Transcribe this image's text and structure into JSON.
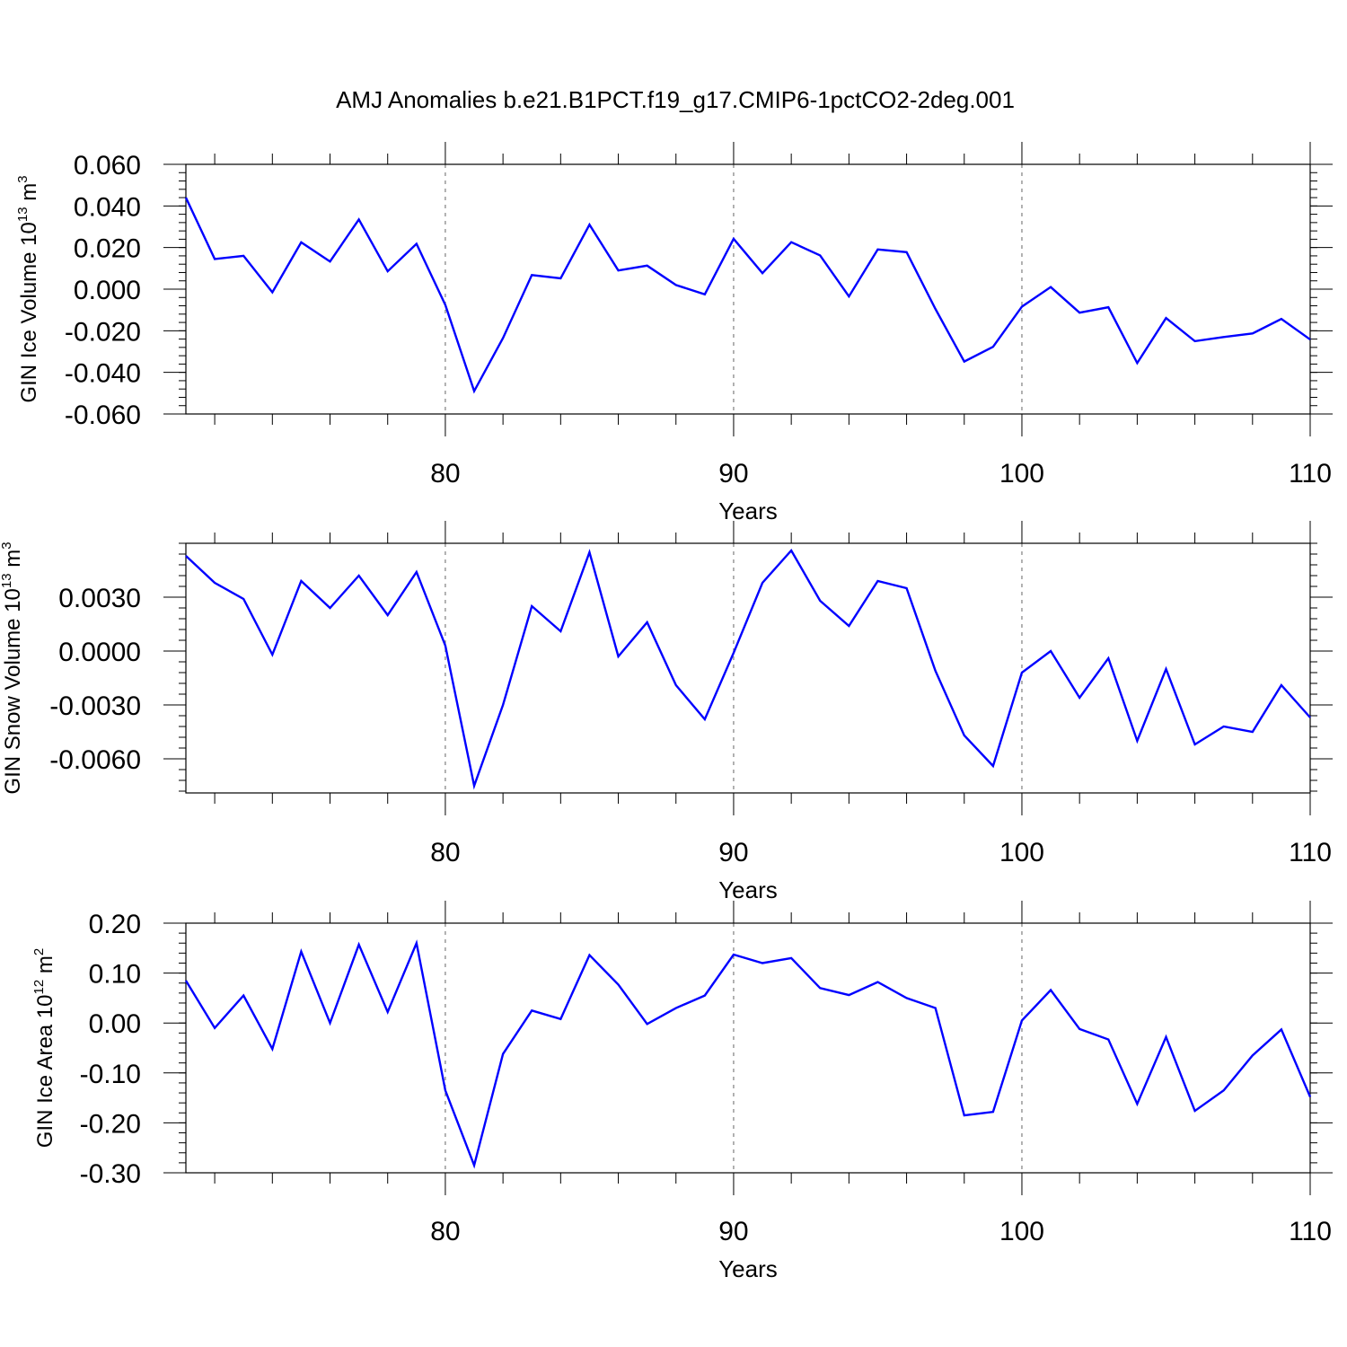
{
  "chart_data": [
    {
      "type": "line",
      "title": "AMJ Anomalies b.e21.B1PCT.f19_g17.CMIP6-1pctCO2-2deg.001",
      "xlabel": "Years",
      "ylabel": {
        "text": "GIN Ice Volume 10",
        "exp": "13",
        "unit": " m",
        "unit_exp": "3"
      },
      "xlim": [
        71,
        110
      ],
      "ylim": [
        -0.06,
        0.06
      ],
      "xticks": [
        80,
        90,
        100,
        110
      ],
      "yticks": [
        -0.06,
        -0.04,
        -0.02,
        0.0,
        0.02,
        0.04,
        0.06
      ],
      "ytick_labels": [
        "-0.060",
        "-0.040",
        "-0.020",
        "0.000",
        "0.020",
        "0.040",
        "0.060"
      ],
      "grid": "dashed vertical at major x ticks",
      "color": "#0000ff",
      "series": [
        {
          "x": [
            71,
            72,
            73,
            74,
            75,
            76,
            77,
            78,
            79,
            80,
            81,
            82,
            83,
            84,
            85,
            86,
            87,
            88,
            89,
            90,
            91,
            92,
            93,
            94,
            95,
            96,
            97,
            98,
            99,
            100,
            101,
            102,
            103,
            104,
            105,
            106,
            107,
            108,
            109,
            110
          ],
          "values": [
            0.044,
            0.0145,
            0.016,
            -0.0015,
            0.0225,
            0.0133,
            0.0335,
            0.0086,
            0.0218,
            -0.0076,
            -0.049,
            -0.0235,
            0.0068,
            0.0052,
            0.031,
            0.009,
            0.0113,
            0.002,
            -0.0025,
            0.0242,
            0.0077,
            0.0226,
            0.0162,
            -0.0035,
            0.0191,
            0.0178,
            -0.0095,
            -0.0348,
            -0.0277,
            -0.0084,
            0.001,
            -0.0113,
            -0.0087,
            -0.0355,
            -0.0139,
            -0.025,
            -0.023,
            -0.0213,
            -0.0143,
            -0.0242
          ]
        }
      ]
    },
    {
      "type": "line",
      "xlabel": "Years",
      "ylabel": {
        "text": "GIN Snow Volume 10",
        "exp": "13",
        "unit": " m",
        "unit_exp": "3"
      },
      "xlim": [
        71,
        110
      ],
      "ylim": [
        -0.0079,
        0.006
      ],
      "xticks": [
        80,
        90,
        100,
        110
      ],
      "yticks": [
        -0.006,
        -0.003,
        0.0,
        0.003
      ],
      "ytick_labels": [
        "-0.0060",
        "-0.0030",
        "0.0000",
        "0.0030"
      ],
      "grid": "dashed vertical at major x ticks",
      "color": "#0000ff",
      "series": [
        {
          "x": [
            71,
            72,
            73,
            74,
            75,
            76,
            77,
            78,
            79,
            80,
            81,
            82,
            83,
            84,
            85,
            86,
            87,
            88,
            89,
            90,
            91,
            92,
            93,
            94,
            95,
            96,
            97,
            98,
            99,
            100,
            101,
            102,
            103,
            104,
            105,
            106,
            107,
            108,
            109,
            110
          ],
          "values": [
            0.0053,
            0.0038,
            0.0029,
            -0.0002,
            0.0039,
            0.0024,
            0.0042,
            0.002,
            0.0044,
            0.0003,
            -0.0075,
            -0.003,
            0.0025,
            0.0011,
            0.0055,
            -0.0003,
            0.0016,
            -0.0019,
            -0.0038,
            -0.0001,
            0.0038,
            0.0056,
            0.0028,
            0.0014,
            0.0039,
            0.0035,
            -0.0011,
            -0.0047,
            -0.0064,
            -0.0012,
            0.0,
            -0.0026,
            -0.0004,
            -0.005,
            -0.001,
            -0.0052,
            -0.0042,
            -0.0045,
            -0.0019,
            -0.0037
          ]
        }
      ]
    },
    {
      "type": "line",
      "xlabel": "Years",
      "ylabel": {
        "text": "GIN Ice Area 10",
        "exp": "12",
        "unit": " m",
        "unit_exp": "2"
      },
      "xlim": [
        71,
        110
      ],
      "ylim": [
        -0.3,
        0.2
      ],
      "xticks": [
        80,
        90,
        100,
        110
      ],
      "yticks": [
        -0.3,
        -0.2,
        -0.1,
        0.0,
        0.1,
        0.2
      ],
      "ytick_labels": [
        "-0.30",
        "-0.20",
        "-0.10",
        "0.00",
        "0.10",
        "0.20"
      ],
      "grid": "dashed vertical at major x ticks",
      "color": "#0000ff",
      "series": [
        {
          "x": [
            71,
            72,
            73,
            74,
            75,
            76,
            77,
            78,
            79,
            80,
            81,
            82,
            83,
            84,
            85,
            86,
            87,
            88,
            89,
            90,
            91,
            92,
            93,
            94,
            95,
            96,
            97,
            98,
            99,
            100,
            101,
            102,
            103,
            104,
            105,
            106,
            107,
            108,
            109,
            110
          ],
          "values": [
            0.085,
            -0.01,
            0.055,
            -0.052,
            0.143,
            0.0,
            0.157,
            0.022,
            0.16,
            -0.135,
            -0.285,
            -0.062,
            0.025,
            0.008,
            0.136,
            0.077,
            -0.002,
            0.03,
            0.055,
            0.137,
            0.12,
            0.13,
            0.07,
            0.056,
            0.082,
            0.05,
            0.03,
            -0.185,
            -0.178,
            0.005,
            0.066,
            -0.012,
            -0.033,
            -0.162,
            -0.028,
            -0.176,
            -0.135,
            -0.065,
            -0.013,
            -0.148
          ]
        }
      ]
    }
  ]
}
